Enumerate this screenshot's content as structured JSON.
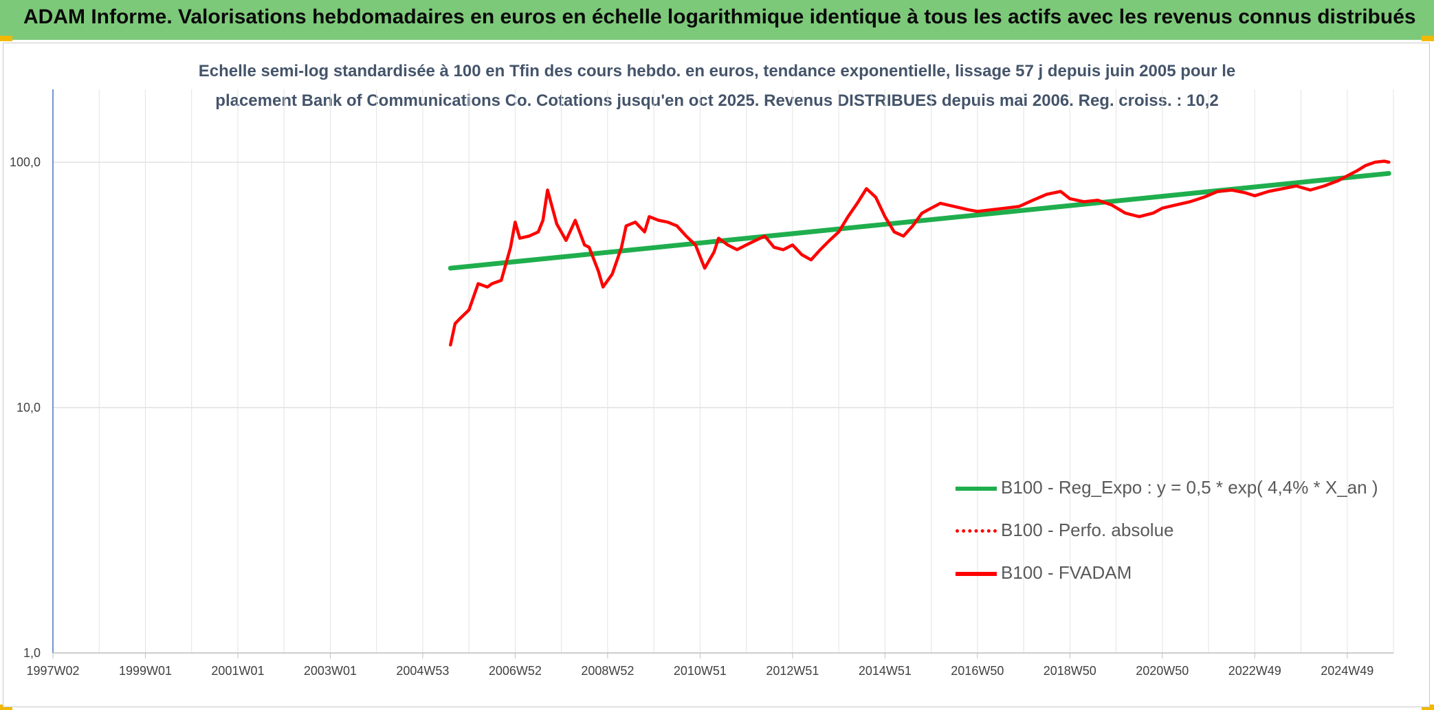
{
  "header": {
    "title": "ADAM Informe. Valorisations hebdomadaires en euros en échelle logarithmique identique à tous les actifs avec les revenus connus distribués"
  },
  "chart_data": {
    "type": "line",
    "title_line1": "Echelle semi-log standardisée à 100 en Tfin des cours hebdo. en euros, tendance exponentielle, lissage 57 j depuis juin 2005 pour le",
    "title_line2": "placement Bank of Communications Co. Cotations jusqu'en oct 2025. Revenus DISTRIBUES depuis mai 2006. Reg. croiss. : 10,2",
    "y_scale": "log",
    "ylim": [
      1,
      200
    ],
    "y_ticks": [
      1,
      10,
      100
    ],
    "y_tick_labels": [
      "1,0",
      "10,0",
      "100,0"
    ],
    "x_tick_labels": [
      "1997W02",
      "1999W01",
      "2001W01",
      "2003W01",
      "2004W53",
      "2006W52",
      "2008W52",
      "2010W51",
      "2012W51",
      "2014W51",
      "2016W50",
      "2018W50",
      "2020W50",
      "2022W49",
      "2024W49"
    ],
    "x_tick_years": [
      1997.0,
      1999.0,
      2001.0,
      2003.0,
      2005.0,
      2007.0,
      2009.0,
      2011.0,
      2013.0,
      2015.0,
      2017.0,
      2019.0,
      2021.0,
      2023.0,
      2025.0
    ],
    "xlim": [
      1997.0,
      2026.0
    ],
    "grid": true,
    "legend_position": "lower-right",
    "series": [
      {
        "name": "B100 - Reg_Expo : y = 0,5 * exp( 4,4% *  X_an )",
        "color": "#1fae4d",
        "style": "solid",
        "x": [
          2005.6,
          2025.9
        ],
        "y": [
          37,
          90
        ]
      },
      {
        "name": "B100 - Perfo. absolue",
        "color": "#ff0000",
        "style": "dotted",
        "x": [],
        "y": []
      },
      {
        "name": "B100 - FVADAM",
        "color": "#ff0000",
        "style": "solid",
        "x": [
          2005.6,
          2005.7,
          2005.8,
          2006.0,
          2006.2,
          2006.4,
          2006.5,
          2006.7,
          2006.9,
          2007.0,
          2007.1,
          2007.3,
          2007.5,
          2007.6,
          2007.7,
          2007.9,
          2008.1,
          2008.3,
          2008.5,
          2008.6,
          2008.8,
          2008.9,
          2009.1,
          2009.3,
          2009.4,
          2009.6,
          2009.8,
          2009.9,
          2010.1,
          2010.3,
          2010.5,
          2010.7,
          2010.9,
          2011.1,
          2011.3,
          2011.4,
          2011.6,
          2011.8,
          2012.0,
          2012.2,
          2012.4,
          2012.6,
          2012.8,
          2013.0,
          2013.2,
          2013.4,
          2013.6,
          2013.8,
          2014.0,
          2014.2,
          2014.4,
          2014.6,
          2014.8,
          2015.0,
          2015.2,
          2015.4,
          2015.6,
          2015.8,
          2016.0,
          2016.2,
          2016.5,
          2016.8,
          2017.0,
          2017.3,
          2017.6,
          2017.9,
          2018.2,
          2018.5,
          2018.8,
          2019.0,
          2019.3,
          2019.6,
          2019.9,
          2020.2,
          2020.5,
          2020.8,
          2021.0,
          2021.3,
          2021.6,
          2021.9,
          2022.2,
          2022.5,
          2022.8,
          2023.0,
          2023.3,
          2023.6,
          2023.9,
          2024.2,
          2024.5,
          2024.8,
          2025.0,
          2025.2,
          2025.4,
          2025.6,
          2025.8,
          2025.9
        ],
        "y": [
          18,
          22,
          23,
          25,
          32,
          31,
          32,
          33,
          45,
          57,
          49,
          50,
          52,
          58,
          77,
          56,
          48,
          58,
          46,
          45,
          36,
          31,
          35,
          45,
          55,
          57,
          52,
          60,
          58,
          57,
          55,
          50,
          46,
          37,
          43,
          49,
          46,
          44,
          46,
          48,
          50,
          45,
          44,
          46,
          42,
          40,
          44,
          48,
          52,
          60,
          68,
          78,
          72,
          60,
          52,
          50,
          55,
          62,
          65,
          68,
          66,
          64,
          63,
          64,
          65,
          66,
          70,
          74,
          76,
          71,
          69,
          70,
          67,
          62,
          60,
          62,
          65,
          67,
          69,
          72,
          76,
          77,
          75,
          73,
          76,
          78,
          80,
          77,
          80,
          84,
          88,
          92,
          97,
          100,
          101,
          100
        ]
      }
    ]
  }
}
